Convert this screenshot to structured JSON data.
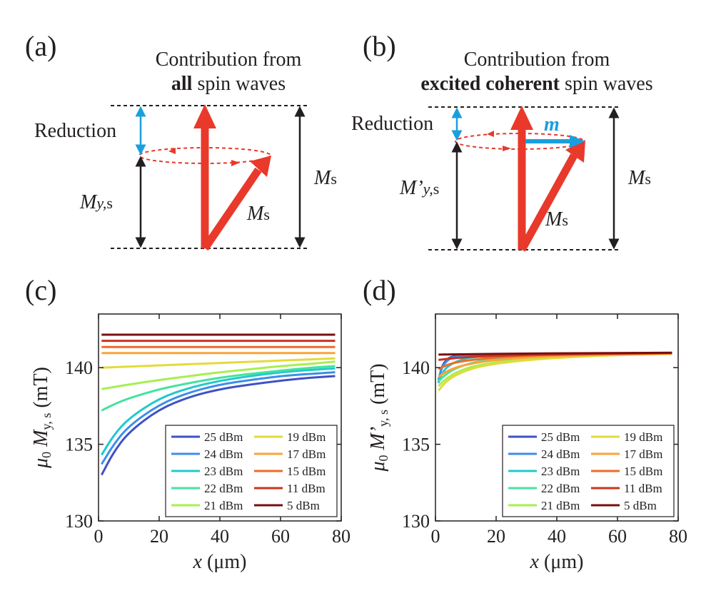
{
  "panel_a": {
    "label": "(a)",
    "title_line1": "Contribution from",
    "title_line2_bold": "all",
    "title_line2_rest": " spin waves",
    "reduction_label": "Reduction",
    "my_label_main": "M",
    "my_label_sub": "y,",
    "my_label_s": "s",
    "ms_label_main": "M",
    "ms_label_s": "s",
    "ms_right_main": "M",
    "ms_right_s": "s"
  },
  "panel_b": {
    "label": "(b)",
    "title_line1": "Contribution from",
    "title_line2_bold": "excited coherent",
    "title_line2_rest": " spin waves",
    "reduction_label": "Reduction",
    "m_label": "m",
    "my_label_main": "M’",
    "my_label_sub": "y,",
    "my_label_s": "s",
    "ms_label_main": "M",
    "ms_label_s": "s",
    "ms_right_main": "M",
    "ms_right_s": "s"
  },
  "colors": {
    "red_arrow": "#e8392b",
    "blue_arrow": "#1a9fde",
    "black": "#231f20"
  },
  "chart_data": [
    {
      "type": "line",
      "panel": "(c)",
      "xlabel_var": "x",
      "xlabel_unit": " (μm)",
      "ylabel_mu": "μ",
      "ylabel_sub0": "0",
      "ylabel_var": " M",
      "ylabel_sub": "y, s",
      "ylabel_unit": " (mT)",
      "xlim": [
        0,
        80
      ],
      "ylim": [
        130,
        143.5
      ],
      "xticks": [
        0,
        20,
        40,
        60,
        80
      ],
      "yticks": [
        130,
        135,
        140
      ],
      "legend_position": "lower-right",
      "series": [
        {
          "name": "25 dBm",
          "color": "#3f51c4",
          "x": [
            1,
            5,
            10,
            20,
            30,
            40,
            50,
            60,
            70,
            78
          ],
          "y": [
            133.0,
            134.5,
            135.8,
            137.3,
            138.1,
            138.6,
            138.9,
            139.15,
            139.35,
            139.45
          ]
        },
        {
          "name": "24 dBm",
          "color": "#3d8ee8",
          "x": [
            1,
            5,
            10,
            20,
            30,
            40,
            50,
            60,
            70,
            78
          ],
          "y": [
            133.7,
            135.0,
            136.2,
            137.6,
            138.4,
            138.9,
            139.2,
            139.45,
            139.6,
            139.7
          ]
        },
        {
          "name": "23 dBm",
          "color": "#22c9cb",
          "x": [
            1,
            5,
            10,
            20,
            30,
            40,
            50,
            60,
            70,
            78
          ],
          "y": [
            134.3,
            135.6,
            136.7,
            138.0,
            138.7,
            139.15,
            139.45,
            139.7,
            139.85,
            139.95
          ]
        },
        {
          "name": "22 dBm",
          "color": "#44e39e",
          "x": [
            1,
            5,
            10,
            20,
            30,
            40,
            50,
            60,
            70,
            78
          ],
          "y": [
            137.2,
            137.6,
            138.0,
            138.6,
            139.0,
            139.35,
            139.6,
            139.8,
            140.0,
            140.1
          ]
        },
        {
          "name": "21 dBm",
          "color": "#a7ef4f",
          "x": [
            1,
            10,
            20,
            30,
            40,
            50,
            60,
            70,
            78
          ],
          "y": [
            138.6,
            138.9,
            139.2,
            139.45,
            139.7,
            139.9,
            140.1,
            140.25,
            140.4
          ]
        },
        {
          "name": "19 dBm",
          "color": "#e2db3b",
          "x": [
            1,
            78
          ],
          "y": [
            140.0,
            140.6
          ]
        },
        {
          "name": "17 dBm",
          "color": "#f9a43a",
          "x": [
            1,
            78
          ],
          "y": [
            140.95,
            140.95
          ]
        },
        {
          "name": "15 dBm",
          "color": "#ee6b28",
          "x": [
            1,
            78
          ],
          "y": [
            141.35,
            141.35
          ]
        },
        {
          "name": "11 dBm",
          "color": "#c8351f",
          "x": [
            1,
            78
          ],
          "y": [
            141.75,
            141.75
          ]
        },
        {
          "name": "5 dBm",
          "color": "#7a0f10",
          "x": [
            1,
            78
          ],
          "y": [
            142.15,
            142.15
          ]
        }
      ]
    },
    {
      "type": "line",
      "panel": "(d)",
      "xlabel_var": "x",
      "xlabel_unit": " (μm)",
      "ylabel_mu": "μ",
      "ylabel_sub0": "0",
      "ylabel_var": " M’",
      "ylabel_sub": "y, s",
      "ylabel_unit": " (mT)",
      "xlim": [
        0,
        80
      ],
      "ylim": [
        130,
        143.5
      ],
      "xticks": [
        0,
        20,
        40,
        60,
        80
      ],
      "yticks": [
        130,
        135,
        140
      ],
      "legend_position": "lower-right",
      "series": [
        {
          "name": "25 dBm",
          "color": "#3f51c4",
          "x": [
            1,
            2,
            4,
            6,
            10,
            20,
            40,
            78
          ],
          "y": [
            139.0,
            140.1,
            140.6,
            140.75,
            140.82,
            140.88,
            140.92,
            140.95
          ]
        },
        {
          "name": "24 dBm",
          "color": "#3d8ee8",
          "x": [
            1,
            2,
            4,
            6,
            10,
            20,
            40,
            78
          ],
          "y": [
            139.2,
            140.0,
            140.5,
            140.7,
            140.8,
            140.87,
            140.92,
            140.95
          ]
        },
        {
          "name": "23 dBm",
          "color": "#22c9cb",
          "x": [
            1,
            2,
            4,
            8,
            12,
            20,
            40,
            78
          ],
          "y": [
            139.0,
            139.6,
            140.1,
            140.5,
            140.68,
            140.8,
            140.9,
            140.95
          ]
        },
        {
          "name": "22 dBm",
          "color": "#44e39e",
          "x": [
            1,
            3,
            6,
            10,
            15,
            25,
            40,
            78
          ],
          "y": [
            139.1,
            139.5,
            139.9,
            140.2,
            140.45,
            140.65,
            140.82,
            140.95
          ]
        },
        {
          "name": "21 dBm",
          "color": "#a7ef4f",
          "x": [
            1,
            3,
            6,
            10,
            15,
            25,
            40,
            60,
            78
          ],
          "y": [
            138.8,
            139.2,
            139.6,
            139.95,
            140.2,
            140.5,
            140.72,
            140.85,
            140.92
          ]
        },
        {
          "name": "19 dBm",
          "color": "#e2db3b",
          "x": [
            1,
            3,
            6,
            10,
            15,
            25,
            40,
            60,
            78
          ],
          "y": [
            138.5,
            139.0,
            139.45,
            139.8,
            140.1,
            140.4,
            140.65,
            140.82,
            140.9
          ]
        },
        {
          "name": "17 dBm",
          "color": "#f9a43a",
          "x": [
            1,
            4,
            8,
            14,
            22,
            35,
            55,
            78
          ],
          "y": [
            139.4,
            139.8,
            140.1,
            140.35,
            140.55,
            140.72,
            140.85,
            140.92
          ]
        },
        {
          "name": "15 dBm",
          "color": "#ee6b28",
          "x": [
            1,
            4,
            8,
            14,
            22,
            35,
            55,
            78
          ],
          "y": [
            139.9,
            140.2,
            140.4,
            140.55,
            140.7,
            140.82,
            140.9,
            140.95
          ]
        },
        {
          "name": "11 dBm",
          "color": "#c8351f",
          "x": [
            1,
            5,
            10,
            20,
            40,
            78
          ],
          "y": [
            140.5,
            140.6,
            140.68,
            140.78,
            140.88,
            140.95
          ]
        },
        {
          "name": "5 dBm",
          "color": "#7a0f10",
          "x": [
            1,
            10,
            30,
            50,
            78
          ],
          "y": [
            140.85,
            140.88,
            140.92,
            140.95,
            140.97
          ]
        }
      ]
    }
  ]
}
